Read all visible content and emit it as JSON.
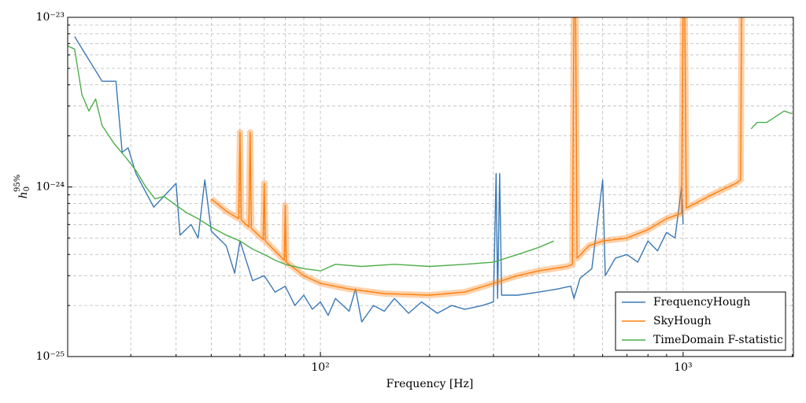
{
  "chart_data": {
    "type": "line",
    "xlog": true,
    "ylog": true,
    "grid": true,
    "legend": "lower right",
    "xlabel": "Frequency [Hz]",
    "ylabel": {
      "main": "h",
      "sub": "0",
      "sup": "95%"
    },
    "xlim": [
      20.1,
      2014
    ],
    "ylim": [
      1e-25,
      1e-23
    ],
    "xticks": [
      {
        "value": 100,
        "label": "10²"
      },
      {
        "value": 1000,
        "label": "10³"
      }
    ],
    "yticks": [
      {
        "value": 1e-25,
        "label": "10⁻²⁵"
      },
      {
        "value": 1e-24,
        "label": "10⁻²⁴"
      },
      {
        "value": 1e-23,
        "label": "10⁻²³"
      }
    ],
    "xminorticks": [
      30,
      40,
      50,
      60,
      70,
      80,
      90,
      200,
      300,
      400,
      500,
      600,
      700,
      800,
      900,
      2000
    ],
    "yminorticks": [
      2e-25,
      3e-25,
      4e-25,
      5e-25,
      6e-25,
      7e-25,
      8e-25,
      9e-25,
      2e-24,
      3e-24,
      4e-24,
      5e-24,
      6e-24,
      7e-24,
      8e-24,
      9e-24
    ],
    "series": [
      {
        "name": "FrequencyHough",
        "color": "#3a78b5",
        "x": [
          21,
          25,
          27.3,
          28.4,
          29.5,
          31,
          34.7,
          40,
          41,
          44,
          46,
          48,
          50,
          55,
          58,
          60,
          65,
          70,
          75,
          80,
          85,
          90,
          95,
          100,
          105,
          110,
          120,
          125,
          130,
          140,
          150,
          160,
          175,
          190,
          210,
          230,
          250,
          280,
          300,
          305,
          308,
          312,
          316,
          350,
          400,
          450,
          490,
          500,
          520,
          560,
          600,
          610,
          650,
          700,
          750,
          800,
          850,
          900,
          950,
          990,
          1000
        ],
        "values": [
          7.7e-24,
          4.2e-24,
          4.2e-24,
          1.6e-24,
          1.7e-24,
          1.2e-24,
          7.6e-25,
          1.05e-24,
          5.2e-25,
          6e-25,
          5e-25,
          1.1e-24,
          5.5e-25,
          4.5e-25,
          3.1e-25,
          4.8e-25,
          2.8e-25,
          3e-25,
          2.4e-25,
          2.6e-25,
          2e-25,
          2.3e-25,
          1.9e-25,
          2.1e-25,
          1.75e-25,
          2.2e-25,
          1.85e-25,
          2.5e-25,
          1.6e-25,
          2e-25,
          1.85e-25,
          2.2e-25,
          1.8e-25,
          2.1e-25,
          1.8e-25,
          2e-25,
          1.9e-25,
          2e-25,
          2.1e-25,
          1.2e-24,
          2.2e-25,
          1.2e-24,
          2.3e-25,
          2.3e-25,
          2.4e-25,
          2.5e-25,
          2.6e-25,
          2.2e-25,
          2.9e-25,
          3.3e-25,
          1.1e-24,
          3e-25,
          3.8e-25,
          4e-25,
          3.6e-25,
          4.8e-25,
          4.2e-25,
          5.4e-25,
          5e-25,
          1e-24,
          6e-25
        ]
      },
      {
        "name": "SkyHough",
        "color": "#ff7f0e",
        "x": [
          50,
          55,
          59.5,
          60,
          60.5,
          63.5,
          64,
          64.5,
          69.5,
          70,
          70.5,
          79.5,
          80,
          80.5,
          90,
          100,
          120,
          150,
          200,
          250,
          300,
          350,
          400,
          480,
          495,
          500,
          505,
          510,
          550,
          600,
          700,
          800,
          900,
          990,
          1000,
          1010,
          1020,
          1200,
          1400,
          1440,
          1450
        ],
        "values": [
          8.5e-25,
          7.2e-25,
          6.5e-25,
          2.1e-24,
          6.4e-25,
          5.8e-25,
          2.1e-24,
          5.7e-25,
          4.9e-25,
          1.05e-24,
          4.8e-25,
          3.7e-25,
          7.8e-25,
          3.6e-25,
          3e-25,
          2.7e-25,
          2.5e-25,
          2.35e-25,
          2.3e-25,
          2.4e-25,
          2.7e-25,
          3e-25,
          3.2e-25,
          3.4e-25,
          3.5e-25,
          1.2e-23,
          1.2e-23,
          3.8e-25,
          4.5e-25,
          4.8e-25,
          5e-25,
          5.6e-25,
          6.5e-25,
          7e-25,
          1.2e-23,
          1.2e-23,
          7.5e-25,
          9e-25,
          1.05e-24,
          1.1e-24,
          1.2e-23
        ]
      },
      {
        "name": "TimeDomain F-statistic",
        "color": "#4daf4a",
        "x": [
          20,
          21,
          22,
          23,
          24,
          25,
          27,
          29,
          31,
          33,
          35,
          37,
          40,
          43,
          46,
          50,
          55,
          60,
          65,
          70,
          75,
          80,
          90,
          100,
          110,
          130,
          160,
          200,
          250,
          300,
          350,
          400,
          440,
          460,
          1540,
          1600,
          1700,
          1800,
          1900,
          2000
        ],
        "values": [
          6.8e-24,
          6.5e-24,
          3.5e-24,
          2.8e-24,
          3.3e-24,
          2.3e-24,
          1.8e-24,
          1.5e-24,
          1.25e-24,
          1e-24,
          8.5e-25,
          8.8e-25,
          7.8e-25,
          7e-25,
          6.5e-25,
          5.8e-25,
          5.2e-25,
          4.8e-25,
          4.3e-25,
          4e-25,
          3.7e-25,
          3.5e-25,
          3.3e-25,
          3.2e-25,
          3.5e-25,
          3.4e-25,
          3.5e-25,
          3.4e-25,
          3.5e-25,
          3.6e-25,
          4e-25,
          4.4e-25,
          4.8e-25,
          null,
          2.2e-24,
          2.4e-24,
          2.4e-24,
          2.6e-24,
          2.8e-24,
          2.7e-24
        ]
      }
    ]
  }
}
